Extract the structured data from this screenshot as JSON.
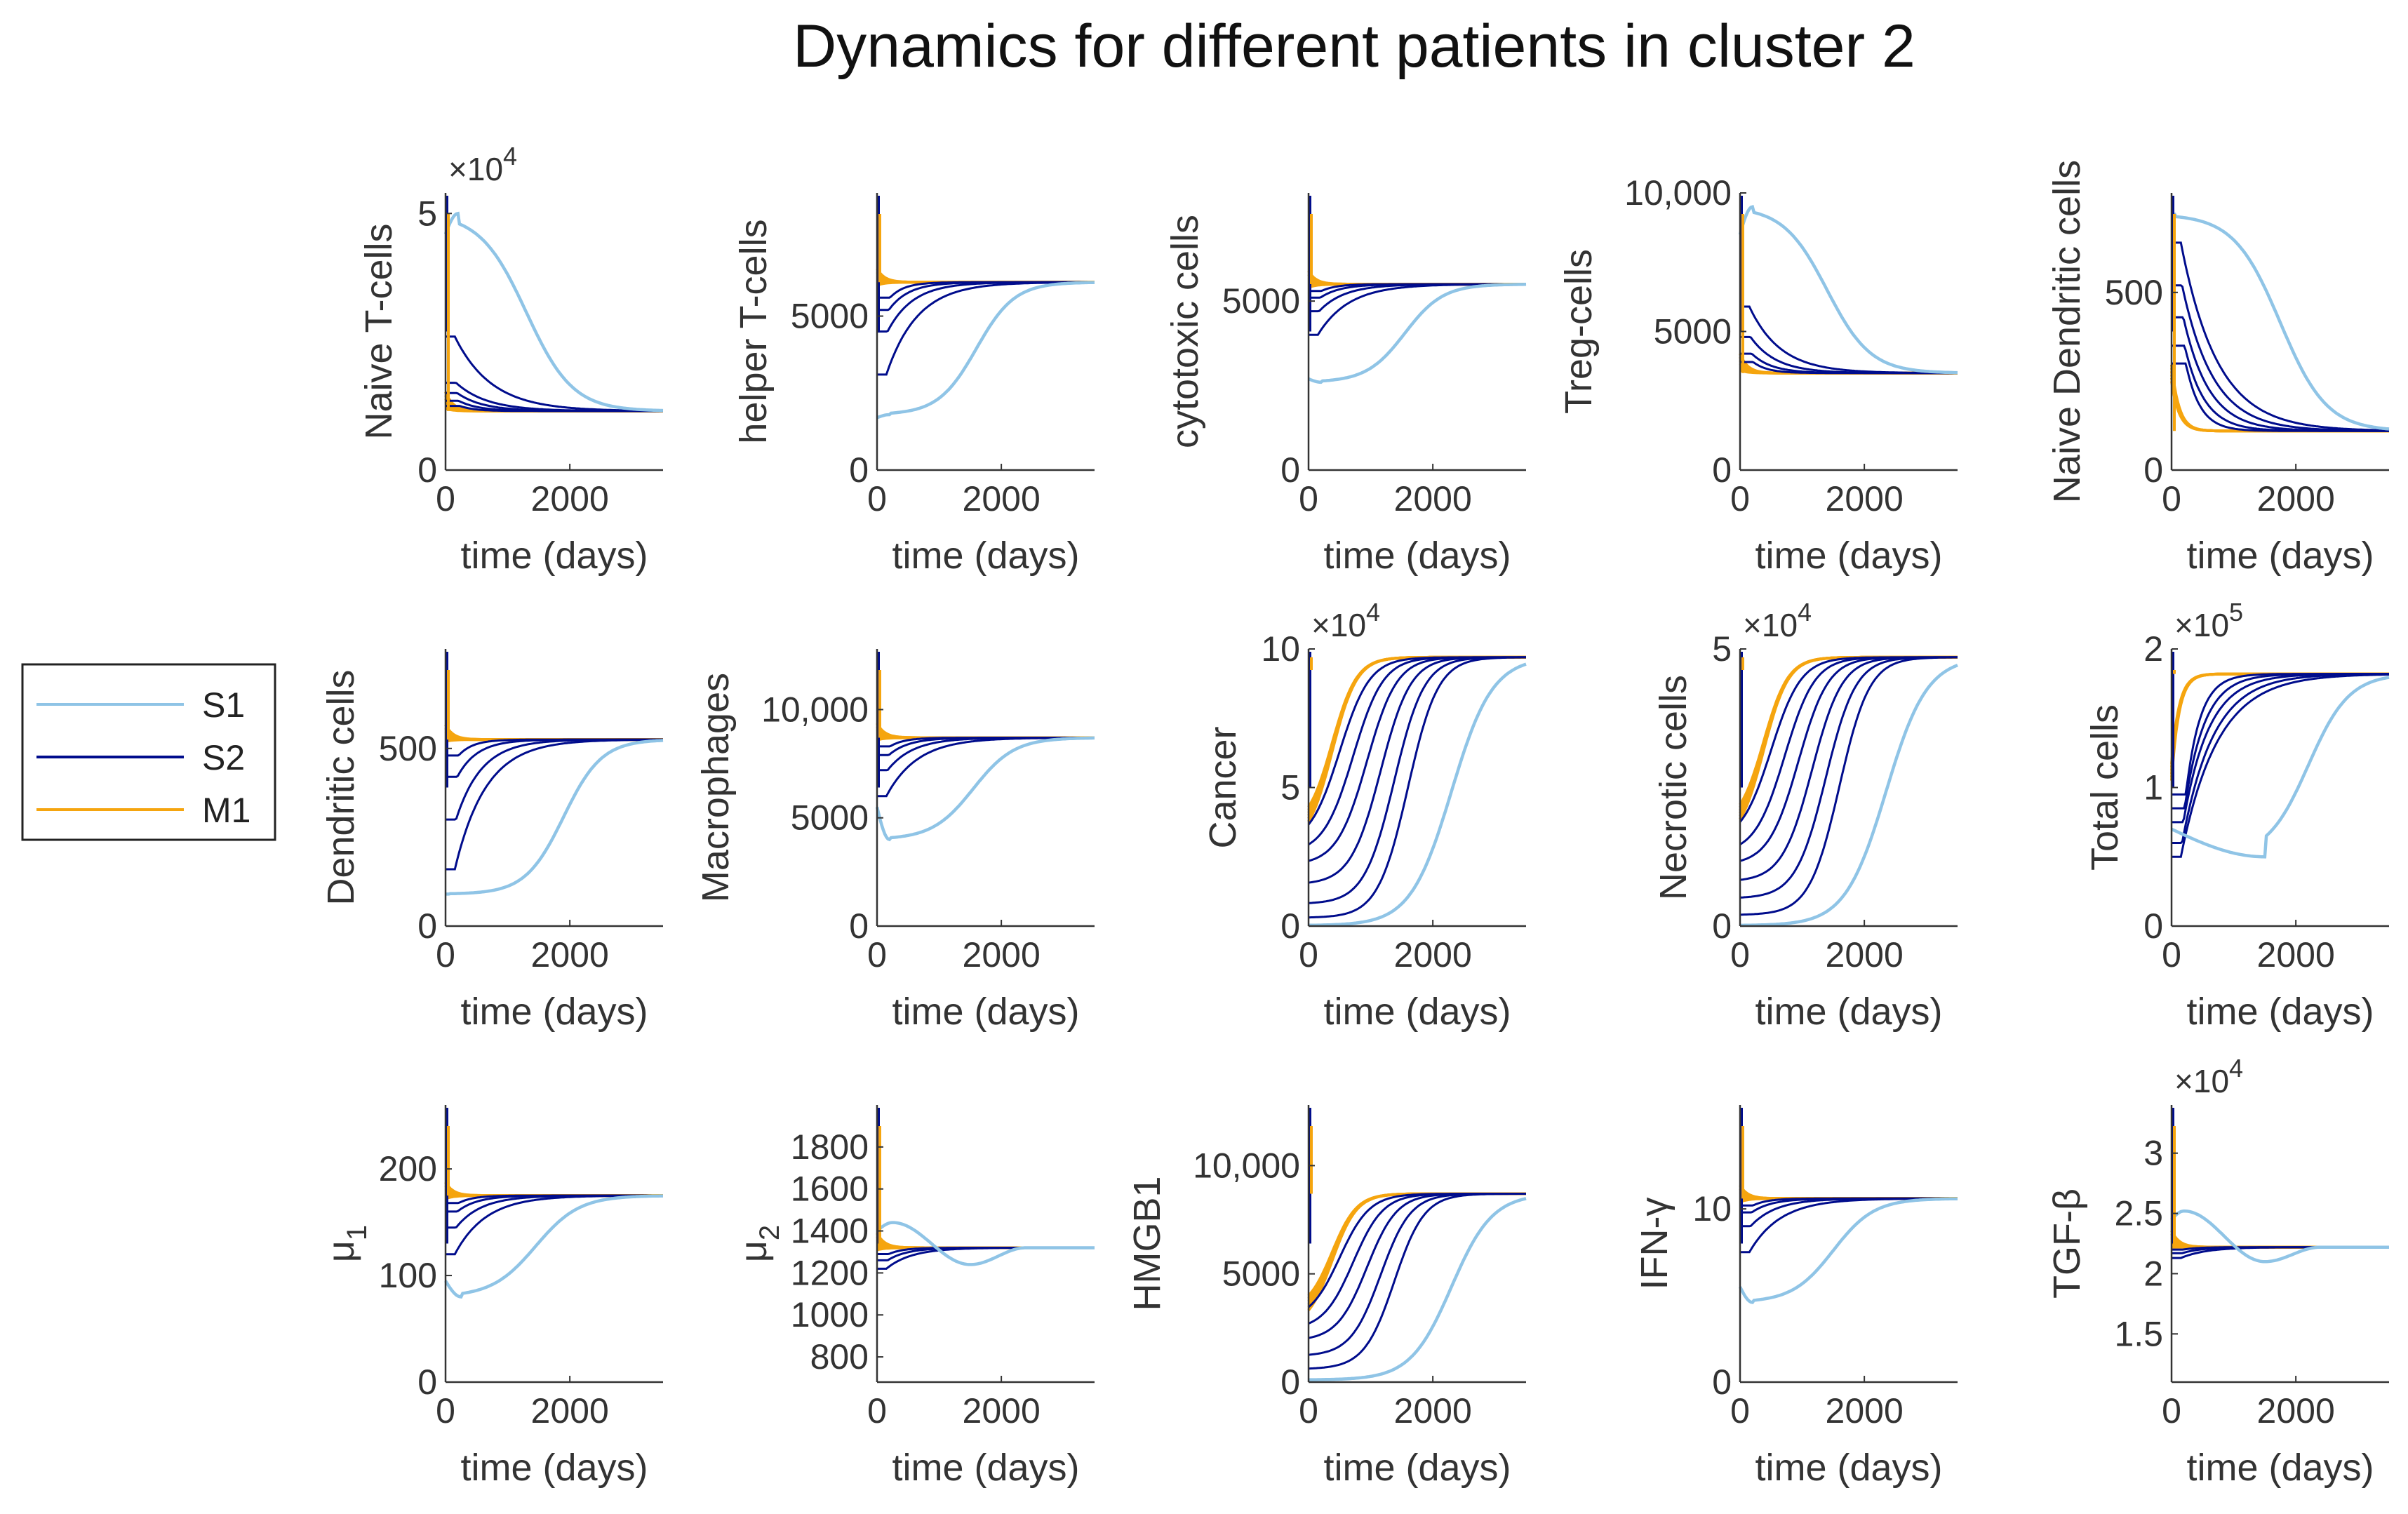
{
  "title": "Dynamics for different patients in cluster 2",
  "colors": {
    "S1": "#8FC4E6",
    "S2": "#000C8C",
    "M1": "#F5A50F",
    "axis": "#333333"
  },
  "legend": {
    "entries": [
      "S1",
      "S2",
      "M1"
    ]
  },
  "xlabel": "time (days)",
  "chart_data": [
    {
      "type": "line",
      "ylabel": "Naive T-cells",
      "exponent": "×10",
      "exponent_power": "4",
      "xlim": [
        0,
        3500
      ],
      "ylim": [
        0,
        5.4
      ],
      "xticks": [
        "0",
        "2000"
      ],
      "yticks": [
        "0",
        "5"
      ],
      "ytick_values": [
        0,
        5
      ],
      "eq": 1.15,
      "s1": {
        "start": 4.6,
        "peak": 5.0,
        "tpeak": 200,
        "tmid": 1300,
        "width": 170
      },
      "s2": [
        2.6,
        1.7,
        1.5,
        1.35,
        1.25
      ],
      "m1_start": 1.2
    },
    {
      "type": "line",
      "ylabel": "helper T-cells",
      "xlim": [
        0,
        3500
      ],
      "ylim": [
        0,
        9000
      ],
      "xticks": [
        "0",
        "2000"
      ],
      "yticks": [
        "0",
        "5000"
      ],
      "ytick_values": [
        0,
        5000
      ],
      "eq": 6100,
      "s1": {
        "start": 1700,
        "dip": 1800,
        "tdip": 200,
        "tmid": 1600,
        "width": 140
      },
      "s2": [
        3100,
        4500,
        5200,
        5600
      ],
      "m1_start": 6000
    },
    {
      "type": "line",
      "ylabel": "cytotoxic cells",
      "xlim": [
        0,
        3500
      ],
      "ylim": [
        0,
        8200
      ],
      "xticks": [
        "0",
        "2000"
      ],
      "yticks": [
        "0",
        "5000"
      ],
      "ytick_values": [
        0,
        5000
      ],
      "eq": 5500,
      "s1": {
        "start": 2700,
        "dip": 2600,
        "tdip": 200,
        "tmid": 1550,
        "width": 140
      },
      "s2": [
        4000,
        4700,
        5100,
        5300
      ],
      "m1_start": 5400
    },
    {
      "type": "line",
      "ylabel": "Treg-cells",
      "xlim": [
        0,
        3500
      ],
      "ylim": [
        0,
        10000
      ],
      "xticks": [
        "0",
        "2000"
      ],
      "yticks": [
        "0",
        "5000",
        "10,000"
      ],
      "ytick_values": [
        0,
        5000,
        10000
      ],
      "eq": 3500,
      "s1": {
        "start": 8500,
        "peak": 9500,
        "tpeak": 200,
        "tmid": 1400,
        "width": 160
      },
      "s2": [
        5900,
        4800,
        4200,
        3900
      ],
      "m1_start": 3600
    },
    {
      "type": "line",
      "ylabel": "Naive Dendritic cells",
      "xlim": [
        0,
        3500
      ],
      "ylim": [
        0,
        780
      ],
      "xticks": [
        "0",
        "2000"
      ],
      "yticks": [
        "0",
        "500"
      ],
      "ytick_values": [
        0,
        500
      ],
      "eq": 110,
      "s1": {
        "start": 720,
        "peak": 720,
        "tpeak": 50,
        "tmid": 1750,
        "width": 170
      },
      "s2": [
        640,
        520,
        430,
        350,
        300
      ],
      "m1_start": 250
    },
    {
      "type": "line",
      "ylabel": "Dendritic cells",
      "xlim": [
        0,
        3500
      ],
      "ylim": [
        0,
        780
      ],
      "xticks": [
        "0",
        "2000"
      ],
      "yticks": [
        "0",
        "500"
      ],
      "ytick_values": [
        0,
        500
      ],
      "eq": 525,
      "s1": {
        "start": 90,
        "dip": 90,
        "tdip": 50,
        "tmid": 1900,
        "width": 140
      },
      "s2": [
        160,
        300,
        420,
        480
      ],
      "m1_start": 520
    },
    {
      "type": "line",
      "ylabel": "Macrophages",
      "xlim": [
        0,
        3500
      ],
      "ylim": [
        0,
        12800
      ],
      "xticks": [
        "0",
        "2000"
      ],
      "yticks": [
        "0",
        "5000",
        "10,000"
      ],
      "ytick_values": [
        0,
        5000,
        10000
      ],
      "eq": 8700,
      "s1": {
        "start": 5500,
        "dip": 4000,
        "tdip": 200,
        "tmid": 1550,
        "width": 150
      },
      "s2": [
        6000,
        7200,
        7900,
        8300
      ],
      "m1_start": 8600
    },
    {
      "type": "line",
      "ylabel": "Cancer",
      "exponent": "×10",
      "exponent_power": "4",
      "xlim": [
        0,
        3500
      ],
      "ylim": [
        0,
        10
      ],
      "xticks": [
        "0",
        "2000"
      ],
      "yticks": [
        "0",
        "5",
        "10"
      ],
      "ytick_values": [
        0,
        5,
        10
      ],
      "eq": 9.7,
      "s1": {
        "start": 0.02,
        "rise": true,
        "tmid": 2300,
        "width": 150
      },
      "s2": [
        0.3,
        0.8,
        1.5,
        2.2,
        2.6,
        2.9
      ],
      "m1_start": 3.5
    },
    {
      "type": "line",
      "ylabel": "Necrotic cells",
      "exponent": "×10",
      "exponent_power": "4",
      "xlim": [
        0,
        3500
      ],
      "ylim": [
        0,
        5
      ],
      "xticks": [
        "0",
        "2000"
      ],
      "yticks": [
        "0",
        "5"
      ],
      "ytick_values": [
        0,
        5
      ],
      "eq": 4.85,
      "s1": {
        "start": 0.01,
        "rise": true,
        "tmid": 2350,
        "width": 150
      },
      "s2": [
        0.2,
        0.5,
        0.8,
        1.1,
        1.3,
        1.5
      ],
      "m1_start": 1.8
    },
    {
      "type": "line",
      "ylabel": "Total cells",
      "exponent": "×10",
      "exponent_power": "5",
      "xlim": [
        0,
        3500
      ],
      "ylim": [
        0,
        2
      ],
      "xticks": [
        "0",
        "2000"
      ],
      "yticks": [
        "0",
        "1",
        "2"
      ],
      "ytick_values": [
        0,
        1,
        2
      ],
      "eq": 1.82,
      "s1": {
        "start": 0.7,
        "dip": 0.5,
        "tdip": 1500,
        "tmid": 2200,
        "width": 150
      },
      "s2": [
        0.5,
        0.6,
        0.75,
        0.85,
        0.95
      ],
      "m1_start": 1.05
    },
    {
      "type": "line",
      "ylabel": "μ",
      "ylabel_sub": "1",
      "xlim": [
        0,
        3500
      ],
      "ylim": [
        0,
        260
      ],
      "xticks": [
        "0",
        "2000"
      ],
      "yticks": [
        "0",
        "100",
        "200"
      ],
      "ytick_values": [
        0,
        100,
        200
      ],
      "eq": 175,
      "s1": {
        "start": 95,
        "dip": 80,
        "tdip": 250,
        "tmid": 1450,
        "width": 160
      },
      "s2": [
        120,
        145,
        160,
        168
      ],
      "m1_start": 172
    },
    {
      "type": "line",
      "ylabel": "μ",
      "ylabel_sub": "2",
      "xlim": [
        0,
        3500
      ],
      "ylim": [
        680,
        2000
      ],
      "xticks": [
        "0",
        "2000"
      ],
      "yticks": [
        "800",
        "1000",
        "1200",
        "1400",
        "1600",
        "1800"
      ],
      "ytick_values": [
        800,
        1000,
        1200,
        1400,
        1600,
        1800
      ],
      "eq": 1320,
      "s1": {
        "oscillate": true,
        "start": 1400,
        "peak": 1440,
        "tpeak": 250,
        "trough": 1240,
        "ttrough": 1500
      },
      "s2": [
        1220,
        1260,
        1290
      ],
      "m1_start": 1310
    },
    {
      "type": "line",
      "ylabel": "HMGB1",
      "xlim": [
        0,
        3500
      ],
      "ylim": [
        0,
        12800
      ],
      "xticks": [
        "0",
        "2000"
      ],
      "yticks": [
        "0",
        "5000",
        "10,000"
      ],
      "ytick_values": [
        0,
        5000,
        10000
      ],
      "eq": 8700,
      "s1": {
        "start": 100,
        "rise": true,
        "tmid": 2300,
        "width": 150
      },
      "s2": [
        600,
        1200,
        1900,
        2400,
        2800
      ],
      "m1_start": 3300
    },
    {
      "type": "line",
      "ylabel": "IFN-γ",
      "xlim": [
        0,
        3500
      ],
      "ylim": [
        0,
        16
      ],
      "xticks": [
        "0",
        "2000"
      ],
      "yticks": [
        "0",
        "10"
      ],
      "ytick_values": [
        0,
        10
      ],
      "eq": 10.6,
      "s1": {
        "start": 5.5,
        "dip": 4.6,
        "tdip": 200,
        "tmid": 1500,
        "width": 150
      },
      "s2": [
        7.5,
        9.0,
        9.8,
        10.2
      ],
      "m1_start": 10.4
    },
    {
      "type": "line",
      "ylabel": "TGF-β",
      "exponent": "×10",
      "exponent_power": "4",
      "xlim": [
        0,
        3500
      ],
      "ylim": [
        1.1,
        3.4
      ],
      "xticks": [
        "0",
        "2000"
      ],
      "yticks": [
        "1.5",
        "2",
        "2.5",
        "3"
      ],
      "ytick_values": [
        1.5,
        2,
        2.5,
        3
      ],
      "eq": 2.22,
      "s1": {
        "oscillate": true,
        "start": 2.45,
        "peak": 2.52,
        "tpeak": 200,
        "trough": 2.1,
        "ttrough": 1500
      },
      "s2": [
        2.13,
        2.17,
        2.2
      ],
      "m1_start": 2.22
    }
  ]
}
